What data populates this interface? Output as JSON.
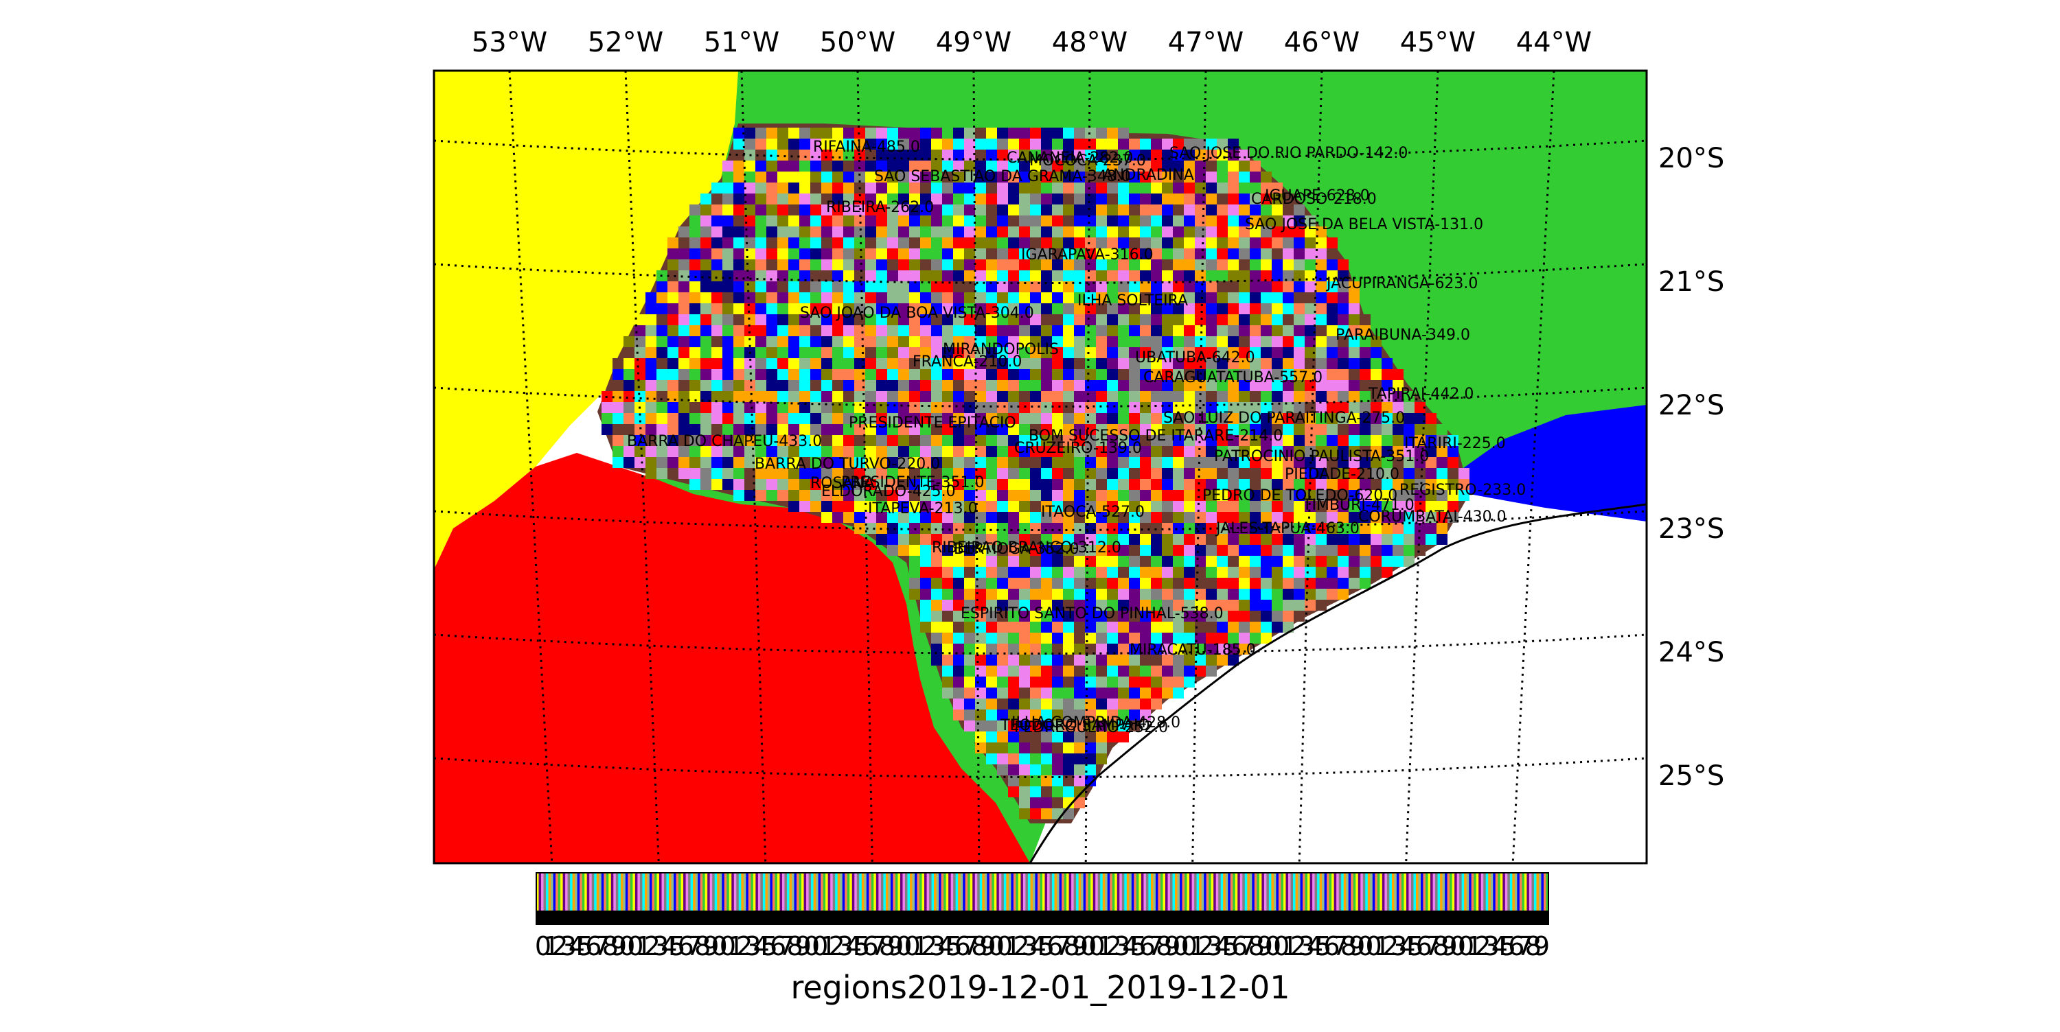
{
  "map": {
    "title": "regions2019-12-01_2019-12-01",
    "lon_labels": [
      "53°W",
      "52°W",
      "51°W",
      "50°W",
      "49°W",
      "48°W",
      "47°W",
      "46°W",
      "45°W",
      "44°W"
    ],
    "lat_labels": [
      "20°S",
      "21°S",
      "22°S",
      "23°S",
      "24°S",
      "25°S"
    ],
    "colors": {
      "mato_grosso_do_sul": "#ffff00",
      "minas_gerais": "#33cc33",
      "parana": "#ff0000",
      "rio_de_janeiro": "#0000ff",
      "ocean": "#ffffff"
    },
    "region_labels": [
      "PRESIDENTE-351.0",
      "JALES-TAPUA-463.0",
      "ANDRADINA",
      "MIRANDOPOLIS",
      "ILHA SOLTEIRA",
      "PRESIDENTE EPITACIO",
      "TEODORO SAMPAIO",
      "ROSANA",
      "CARDOSO-218.0",
      "FRANCA-210.0",
      "SAO JOSE DA BELA VISTA-131.0",
      "IGARAPAVA-316.0",
      "PEDREGULHO-252.0",
      "RIFAINA-485.0",
      "PATROCINIO PAULISTA-351.0",
      "MOCOCA-237.0",
      "SAO JOAO DA BOA VISTA-304.0",
      "SAO JOSE DO RIO PARDO-142.0",
      "SAO SEBASTIAO DA GRAMA-348.0",
      "ESPIRITO SANTO DO PINHAL-538.0",
      "CRUZEIRO-139.0",
      "UBATUBA-642.0",
      "CARAGUATATUBA-557.0",
      "PARAIBUNA-349.0",
      "SAO LUIZ DO PARAITINGA-275.0",
      "BERTIOGA-352.0",
      "TAPIRAI-442.0",
      "PIEDADE-210.0",
      "ITARIRI-225.0",
      "PEDRO DE TOLEDO-620.0",
      "MIRACATU-185.0",
      "IGUAPE-628.0",
      "ILHA COMPRIDA-428.0",
      "CANANEIA-282.0",
      "BARRA DO TURVO-220.0",
      "REGISTRO-233.0",
      "JACUPIRANGA-623.0",
      "ELDORADO-425.0",
      "RIBEIRA-262.0",
      "ITAPEVA-213.0",
      "BOM SUCESSO DE ITARARE-214.0",
      "BARRA DO CHAPEU-433.0",
      "ITAOCA-527.0",
      "RIBEIRAO BRANCO-312.0",
      "TIMBURI-471.0",
      "CORUMBATAI-430.0"
    ],
    "colorbar": {
      "tick_text": "0 1 2 3 4 5 6 7 8 9 0"
    }
  }
}
